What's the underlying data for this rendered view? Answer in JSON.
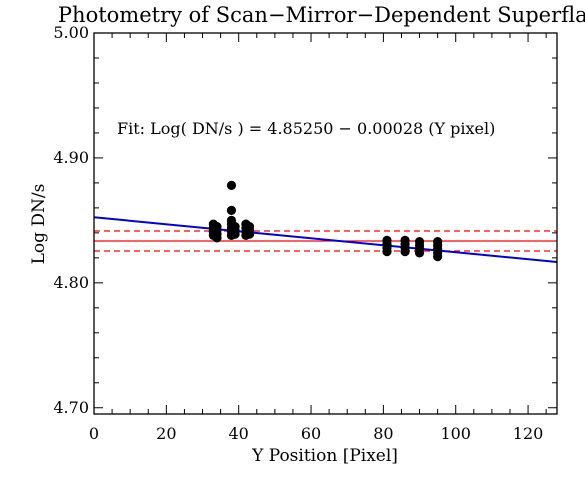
{
  "chart_data": {
    "type": "scatter",
    "title": "Photometry of Scan−Mirror−Dependent Superflat",
    "xlabel": "Y Position [Pixel]",
    "ylabel": "Log DN/s",
    "xlim": [
      0,
      128
    ],
    "ylim": [
      4.695,
      5.0
    ],
    "x_ticks": [
      {
        "value": 0,
        "label": "0"
      },
      {
        "value": 20,
        "label": "20"
      },
      {
        "value": 40,
        "label": "40"
      },
      {
        "value": 60,
        "label": "60"
      },
      {
        "value": 80,
        "label": "80"
      },
      {
        "value": 100,
        "label": "100"
      },
      {
        "value": 120,
        "label": "120"
      }
    ],
    "y_ticks": [
      {
        "value": 4.7,
        "label": "4.70"
      },
      {
        "value": 4.8,
        "label": "4.80"
      },
      {
        "value": 4.9,
        "label": "4.90"
      },
      {
        "value": 5.0,
        "label": "5.00"
      }
    ],
    "x_minor_step": 5,
    "y_minor_step": 0.02,
    "grid": false,
    "annotation": "Fit: Log( DN/s ) = 4.85250 − 0.00028 (Y pixel)",
    "fit_line": {
      "intercept": 4.8525,
      "slope": -0.00028,
      "color": "#0000dd"
    },
    "mean_line": {
      "y": 4.8335,
      "color": "#ff0000"
    },
    "band_lines": {
      "y": [
        4.8255,
        4.8415
      ],
      "color": "#ff0000",
      "style": "dashed"
    },
    "marker_color": "#000000",
    "series": [
      {
        "values": [
          {
            "x": 33,
            "y": 4.838
          },
          {
            "x": 33,
            "y": 4.841
          },
          {
            "x": 33,
            "y": 4.844
          },
          {
            "x": 33,
            "y": 4.847
          },
          {
            "x": 34,
            "y": 4.836
          },
          {
            "x": 34,
            "y": 4.839
          },
          {
            "x": 34,
            "y": 4.842
          },
          {
            "x": 34,
            "y": 4.845
          },
          {
            "x": 38,
            "y": 4.878
          },
          {
            "x": 38,
            "y": 4.858
          },
          {
            "x": 38,
            "y": 4.838
          },
          {
            "x": 38,
            "y": 4.841
          },
          {
            "x": 38,
            "y": 4.844
          },
          {
            "x": 38,
            "y": 4.847
          },
          {
            "x": 38,
            "y": 4.85
          },
          {
            "x": 39,
            "y": 4.839
          },
          {
            "x": 39,
            "y": 4.842
          },
          {
            "x": 39,
            "y": 4.845
          },
          {
            "x": 42,
            "y": 4.838
          },
          {
            "x": 42,
            "y": 4.841
          },
          {
            "x": 42,
            "y": 4.844
          },
          {
            "x": 42,
            "y": 4.847
          },
          {
            "x": 43,
            "y": 4.839
          },
          {
            "x": 43,
            "y": 4.842
          },
          {
            "x": 43,
            "y": 4.845
          },
          {
            "x": 81,
            "y": 4.825
          },
          {
            "x": 81,
            "y": 4.828
          },
          {
            "x": 81,
            "y": 4.831
          },
          {
            "x": 81,
            "y": 4.834
          },
          {
            "x": 86,
            "y": 4.825
          },
          {
            "x": 86,
            "y": 4.828
          },
          {
            "x": 86,
            "y": 4.831
          },
          {
            "x": 86,
            "y": 4.834
          },
          {
            "x": 90,
            "y": 4.824
          },
          {
            "x": 90,
            "y": 4.827
          },
          {
            "x": 90,
            "y": 4.83
          },
          {
            "x": 90,
            "y": 4.833
          },
          {
            "x": 95,
            "y": 4.821
          },
          {
            "x": 95,
            "y": 4.824
          },
          {
            "x": 95,
            "y": 4.827
          },
          {
            "x": 95,
            "y": 4.83
          },
          {
            "x": 95,
            "y": 4.833
          }
        ]
      }
    ]
  }
}
